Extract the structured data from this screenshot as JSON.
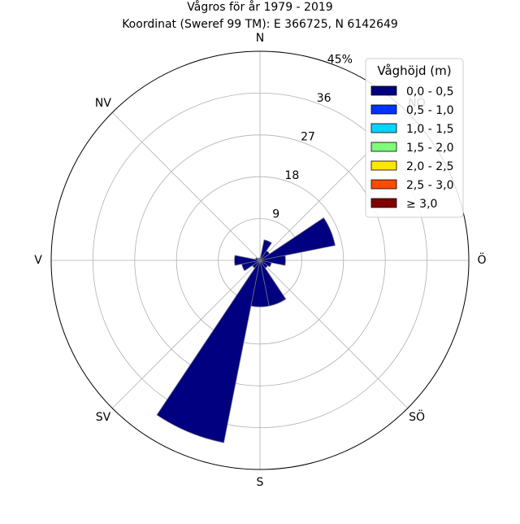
{
  "chart_data": {
    "type": "wind_rose",
    "title": "Vågros för år 1979 - 2019",
    "subtitle": "Koordinat (Sweref 99 TM): E 366725, N 6142649",
    "direction_labels": [
      "N",
      "NV",
      "V",
      "SV",
      "S",
      "SÖ",
      "Ö",
      "NÖ"
    ],
    "direction_angles_deg": [
      0,
      315,
      270,
      225,
      180,
      135,
      90,
      45
    ],
    "radial_ticks": [
      9,
      18,
      27,
      36,
      45
    ],
    "radial_tick_labels": [
      "9",
      "18",
      "27",
      "36",
      "45%"
    ],
    "rmax": 45,
    "radial_label_angle_deg": 22.5,
    "legend": {
      "title": "Våghöjd (m)",
      "placement": "top-right",
      "entries": [
        {
          "label": "0,0 - 0,5",
          "color": "#000080"
        },
        {
          "label": "0,5 - 1,0",
          "color": "#0033ff"
        },
        {
          "label": "1,0 - 1,5",
          "color": "#00d5ff"
        },
        {
          "label": "1,5 - 2,0",
          "color": "#7dff7a"
        },
        {
          "label": "2,0 - 2,5",
          "color": "#ffe600"
        },
        {
          "label": "2,5 - 3,0",
          "color": "#ff4a00"
        },
        {
          "label": "≥ 3,0",
          "color": "#800000"
        }
      ]
    },
    "sector_width_deg": 22.5,
    "series": [
      {
        "name": "0,0 - 0,5",
        "color": "#000080",
        "directions_deg": [
          0,
          22.5,
          45,
          67.5,
          90,
          112.5,
          135,
          157.5,
          180,
          202.5,
          225,
          247.5,
          270,
          292.5,
          315,
          337.5
        ],
        "values": [
          0.5,
          4.5,
          2.5,
          16.5,
          5.5,
          2.5,
          2.0,
          10.0,
          10.0,
          40.0,
          2.0,
          4.0,
          5.5,
          1.0,
          0.5,
          0.5
        ]
      }
    ]
  }
}
